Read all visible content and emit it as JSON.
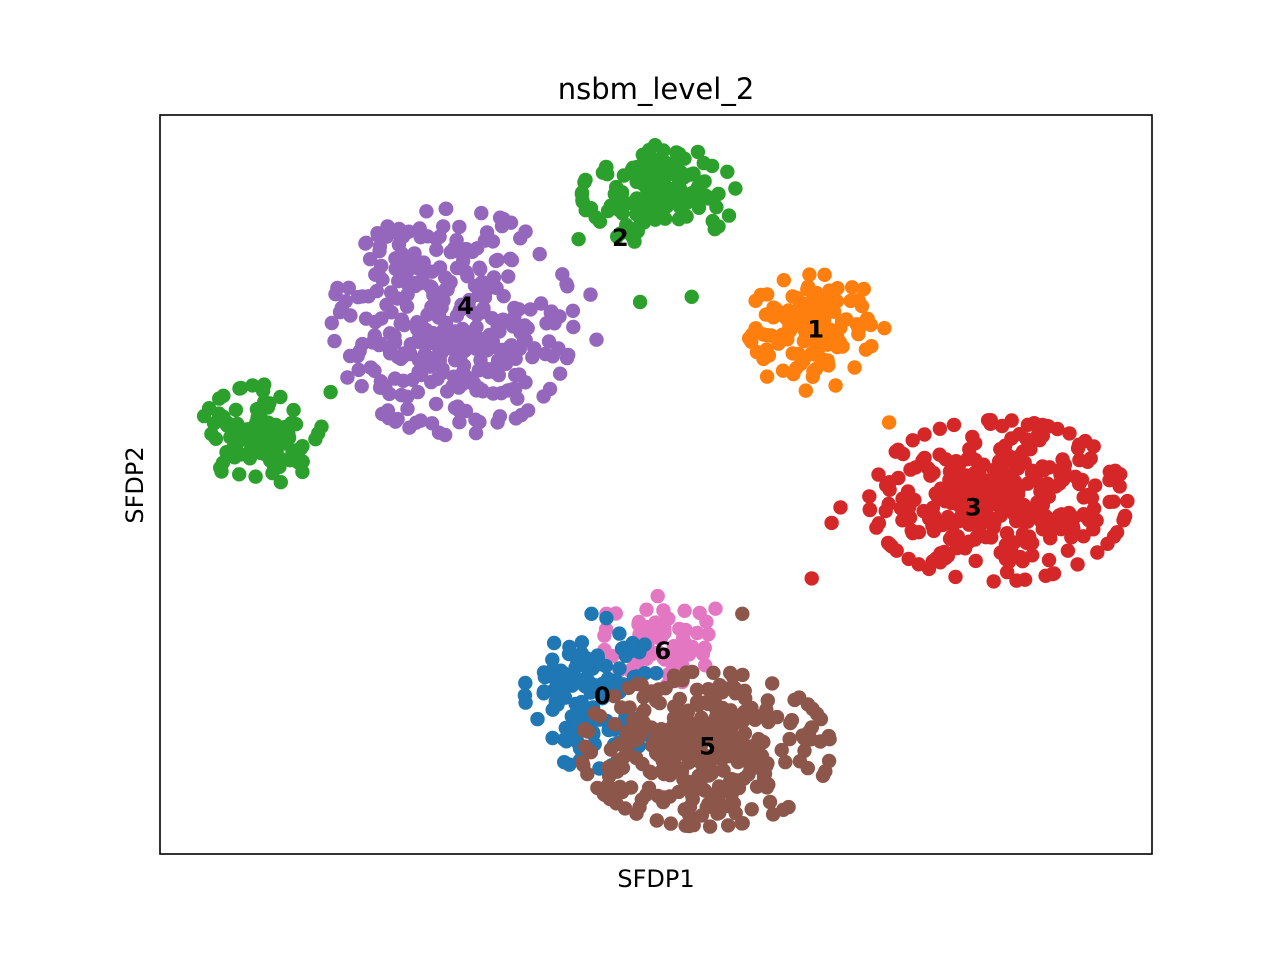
{
  "chart_data": {
    "type": "scatter",
    "title": "nsbm_level_2",
    "xlabel": "SFDP1",
    "ylabel": "SFDP2",
    "xlim": [
      0,
      100
    ],
    "ylim": [
      0,
      100
    ],
    "grid": false,
    "ticks": false,
    "legend": "on data",
    "colors": {
      "0": "#1f77b4",
      "1": "#ff7f0e",
      "2": "#2ca02c",
      "3": "#d62728",
      "4": "#9467bd",
      "5": "#8c564b",
      "6": "#e377c2"
    },
    "clusters": [
      {
        "label": "0",
        "centroid": [
          44.6,
          21.5
        ],
        "blobs": [
          {
            "cx": 43.5,
            "cy": 22.0,
            "sx": 3.2,
            "sy": 5.0,
            "n": 140
          }
        ],
        "extra_points": []
      },
      {
        "label": "1",
        "centroid": [
          66.1,
          71.1
        ],
        "blobs": [
          {
            "cx": 66.1,
            "cy": 71.5,
            "sx": 3.3,
            "sy": 3.3,
            "n": 130
          }
        ],
        "extra_points": [
          [
            59.7,
            70.3
          ],
          [
            61.2,
            64.6
          ],
          [
            65.1,
            62.7
          ],
          [
            68.1,
            63.4
          ],
          [
            73.5,
            58.4
          ]
        ]
      },
      {
        "label": "2",
        "centroid": [
          46.4,
          83.5
        ],
        "blobs": [
          {
            "cx": 50.3,
            "cy": 89.2,
            "sx": 3.7,
            "sy": 3.2,
            "n": 150
          },
          {
            "cx": 10.5,
            "cy": 56.8,
            "sx": 3.1,
            "sy": 3.2,
            "n": 100
          }
        ],
        "extra_points": [
          [
            17.2,
            62.5
          ],
          [
            22.3,
            63.1
          ],
          [
            42.2,
            83.2
          ],
          [
            48.4,
            74.7
          ],
          [
            53.6,
            75.4
          ]
        ]
      },
      {
        "label": "3",
        "centroid": [
          82.0,
          47.0
        ],
        "blobs": [
          {
            "cx": 84.5,
            "cy": 47.8,
            "sx": 6.2,
            "sy": 5.2,
            "n": 340
          }
        ],
        "extra_points": [
          [
            65.7,
            37.3
          ],
          [
            68.6,
            46.9
          ],
          [
            67.7,
            44.8
          ]
        ]
      },
      {
        "label": "4",
        "centroid": [
          30.8,
          74.3
        ],
        "blobs": [
          {
            "cx": 29.5,
            "cy": 72.0,
            "sx": 5.8,
            "sy": 7.3,
            "n": 350
          }
        ],
        "extra_points": [
          [
            43.4,
            75.7
          ],
          [
            44.0,
            69.6
          ]
        ]
      },
      {
        "label": "5",
        "centroid": [
          55.2,
          14.7
        ],
        "blobs": [
          {
            "cx": 55.0,
            "cy": 14.2,
            "sx": 6.0,
            "sy": 5.0,
            "n": 330
          }
        ],
        "extra_points": [
          [
            58.7,
            32.5
          ],
          [
            48.0,
            13.0
          ],
          [
            47.0,
            16.5
          ]
        ]
      },
      {
        "label": "6",
        "centroid": [
          50.7,
          27.6
        ],
        "blobs": [
          {
            "cx": 50.2,
            "cy": 28.6,
            "sx": 2.6,
            "sy": 3.0,
            "n": 70
          }
        ],
        "extra_points": [
          [
            56.0,
            33.2
          ],
          [
            45.0,
            32.5
          ]
        ]
      }
    ]
  }
}
